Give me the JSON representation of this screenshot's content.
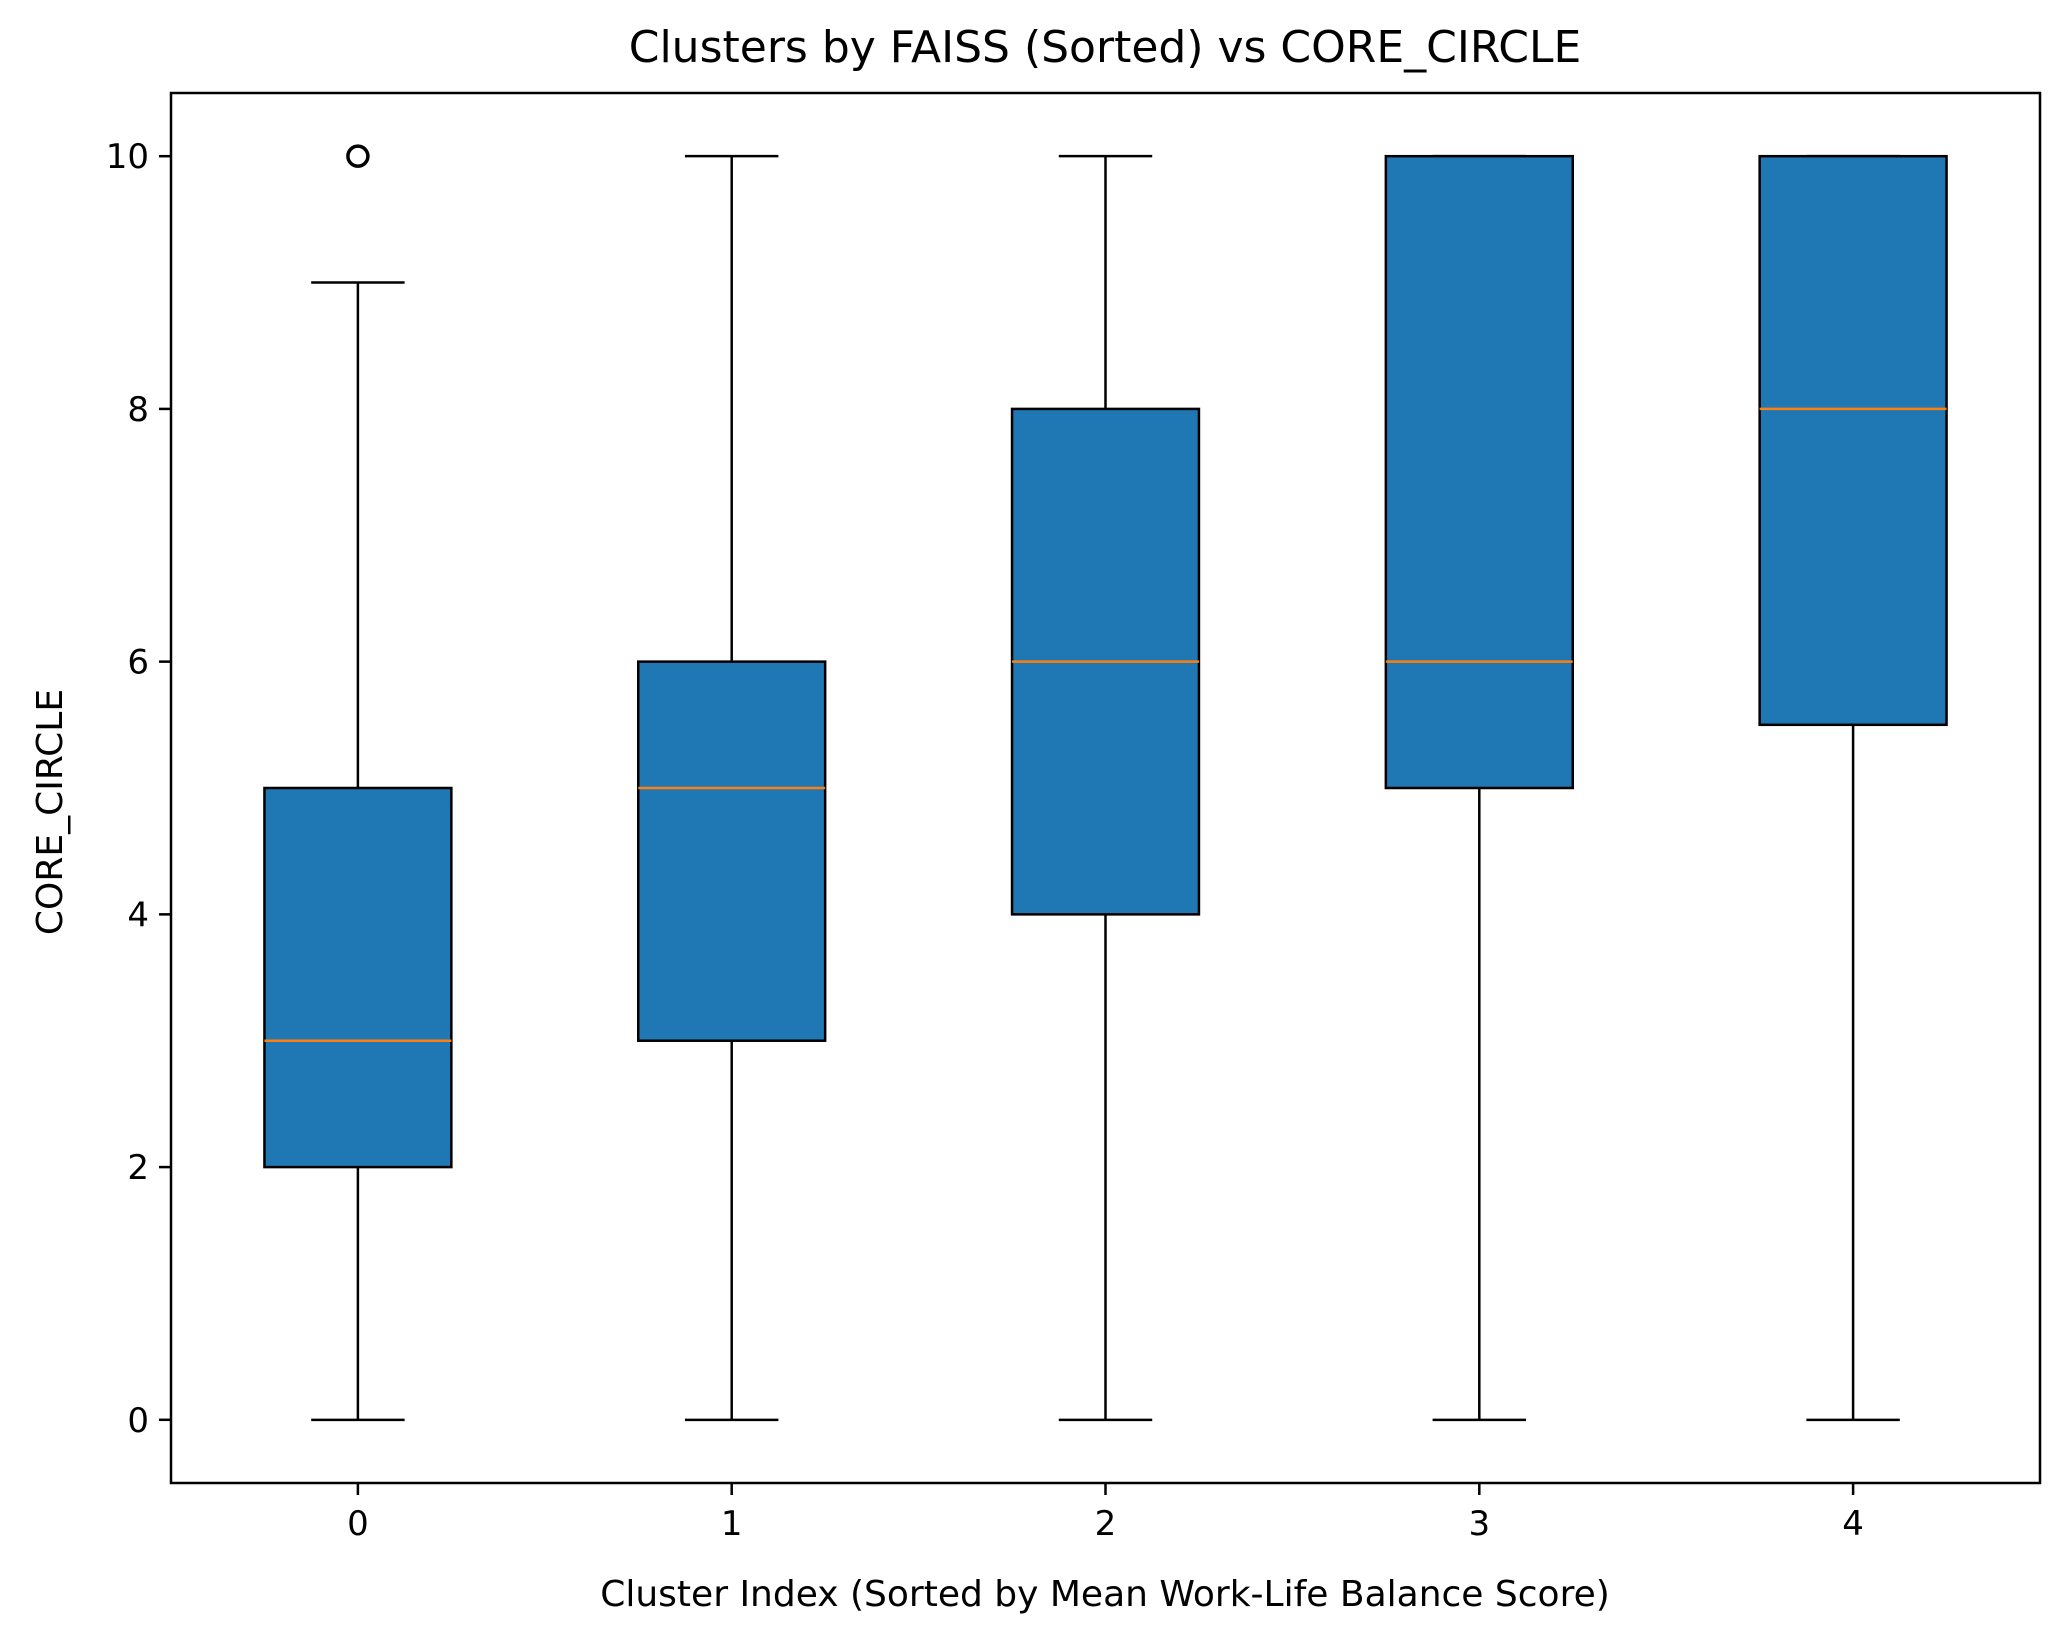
{
  "chart_data": {
    "type": "box",
    "title": "Clusters by FAISS (Sorted) vs CORE_CIRCLE",
    "xlabel": "Cluster Index (Sorted by Mean Work-Life Balance Score)",
    "ylabel": "CORE_CIRCLE",
    "categories": [
      "0",
      "1",
      "2",
      "3",
      "4"
    ],
    "ylim": [
      -0.5,
      10.5
    ],
    "yticks": [
      0,
      2,
      4,
      6,
      8,
      10
    ],
    "grid": false,
    "box_color": "#1f77b4",
    "median_color": "#ff7f0e",
    "boxes": [
      {
        "category": "0",
        "whisker_low": 0,
        "q1": 2,
        "median": 3,
        "q3": 5,
        "whisker_high": 9,
        "outliers": [
          10
        ]
      },
      {
        "category": "1",
        "whisker_low": 0,
        "q1": 3,
        "median": 5,
        "q3": 6,
        "whisker_high": 10,
        "outliers": []
      },
      {
        "category": "2",
        "whisker_low": 0,
        "q1": 4,
        "median": 6,
        "q3": 8,
        "whisker_high": 10,
        "outliers": []
      },
      {
        "category": "3",
        "whisker_low": 0,
        "q1": 5,
        "median": 6,
        "q3": 10,
        "whisker_high": 10,
        "outliers": []
      },
      {
        "category": "4",
        "whisker_low": 0,
        "q1": 5.5,
        "median": 8,
        "q3": 10,
        "whisker_high": 10,
        "outliers": []
      }
    ]
  }
}
